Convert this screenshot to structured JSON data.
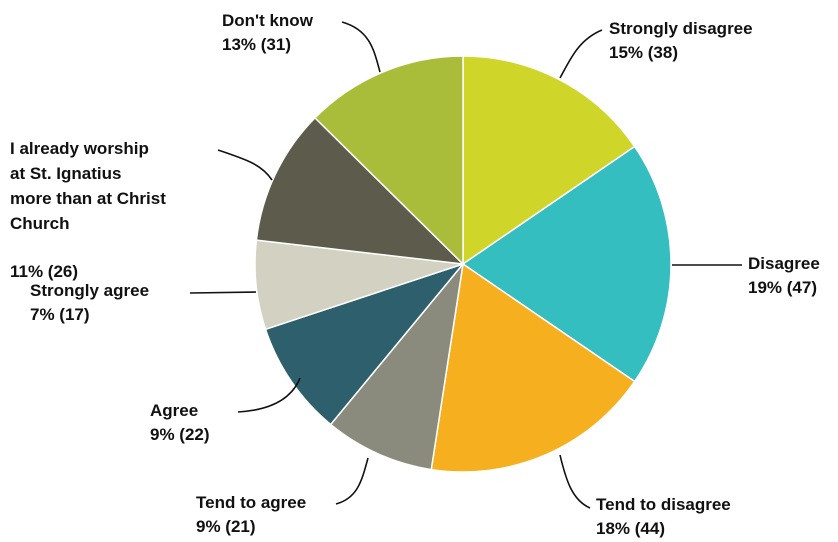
{
  "chart_data": {
    "type": "pie",
    "title": "",
    "slices": [
      {
        "label": "Strongly disagree",
        "value_text": "15% (38)",
        "percent": 15,
        "count": 38,
        "color": "#cfd629"
      },
      {
        "label": "Disagree",
        "value_text": "19% (47)",
        "percent": 19,
        "count": 47,
        "color": "#34bec0"
      },
      {
        "label": "Tend to disagree",
        "value_text": "18% (44)",
        "percent": 18,
        "count": 44,
        "color": "#f6b01f"
      },
      {
        "label": "Tend to agree",
        "value_text": "9% (21)",
        "percent": 9,
        "count": 21,
        "color": "#8a8b7c"
      },
      {
        "label": "Agree",
        "value_text": "9% (22)",
        "percent": 9,
        "count": 22,
        "color": "#2e5f6c"
      },
      {
        "label": "Strongly agree",
        "value_text": "7% (17)",
        "percent": 7,
        "count": 17,
        "color": "#d2d1c2"
      },
      {
        "label": "I already worship at St. Ignatius more than at Christ Church",
        "label_lines": [
          "I already worship",
          "at St. Ignatius",
          "more than at Christ",
          "Church"
        ],
        "value_text": "11% (26)",
        "percent": 11,
        "count": 26,
        "color": "#5d5b4c"
      },
      {
        "label": "Don't know",
        "value_text": "13% (31)",
        "percent": 13,
        "count": 31,
        "color": "#a9bd3a"
      }
    ]
  }
}
